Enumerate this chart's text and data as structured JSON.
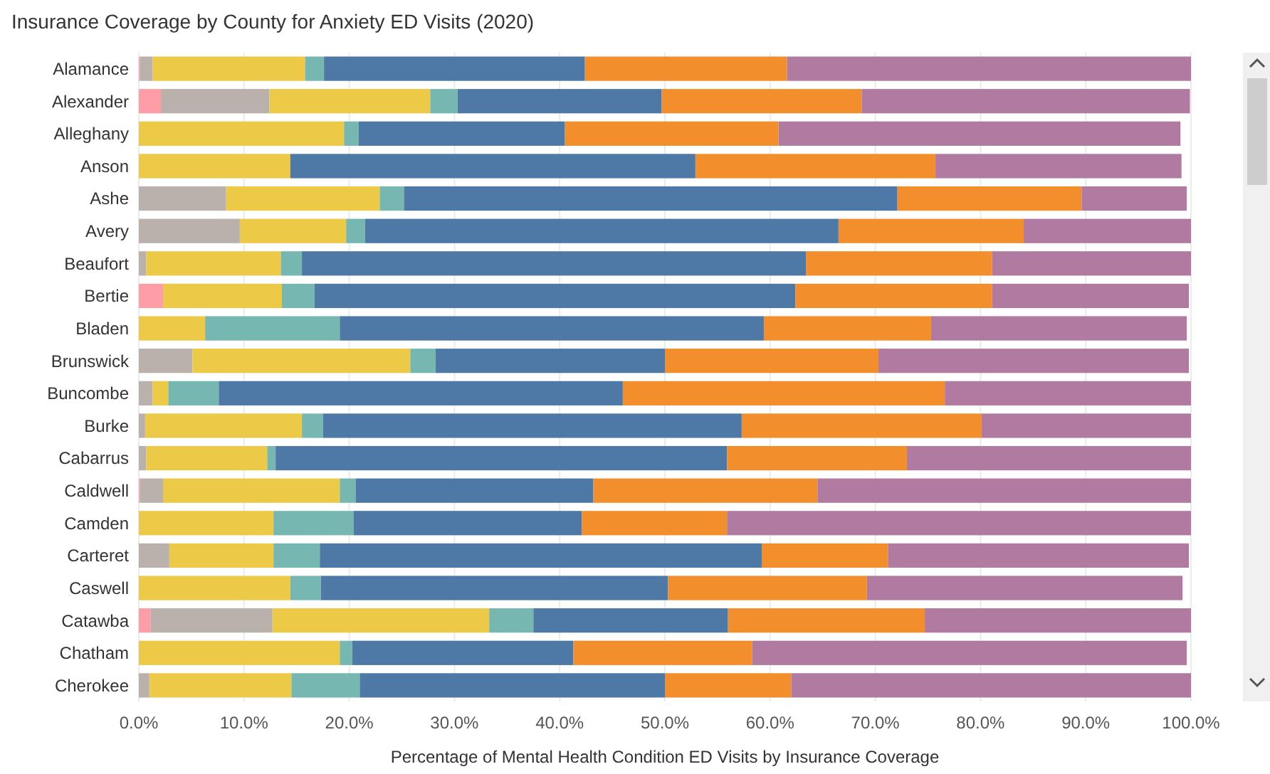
{
  "chart_data": {
    "type": "bar",
    "orientation": "horizontal",
    "stacked": true,
    "title": "Insurance Coverage by County for Anxiety ED Visits (2020)",
    "xlabel": "Percentage of Mental Health Condition ED Visits by Insurance Coverage",
    "categories": [
      "Alamance",
      "Alexander",
      "Alleghany",
      "Anson",
      "Ashe",
      "Avery",
      "Beaufort",
      "Bertie",
      "Bladen",
      "Brunswick",
      "Buncombe",
      "Burke",
      "Cabarrus",
      "Caldwell",
      "Camden",
      "Carteret",
      "Caswell",
      "Catawba",
      "Chatham",
      "Cherokee"
    ],
    "series": [
      {
        "color": "#ff9da7",
        "values": [
          0.1,
          2.1,
          0,
          0,
          0,
          0,
          0,
          2.3,
          0,
          0,
          0,
          0,
          0,
          0.1,
          0,
          0,
          0,
          1.1,
          0,
          0
        ]
      },
      {
        "color": "#bab0ac",
        "values": [
          1.2,
          10.3,
          0,
          0,
          8.3,
          9.6,
          0.7,
          0,
          0,
          5.1,
          1.3,
          0.6,
          0.7,
          2.2,
          0,
          2.9,
          0,
          11.6,
          0,
          1.0
        ]
      },
      {
        "color": "#edc948",
        "values": [
          14.5,
          15.3,
          19.5,
          14.4,
          14.6,
          10.1,
          12.8,
          11.3,
          6.3,
          20.7,
          1.5,
          14.9,
          11.5,
          16.8,
          12.8,
          9.9,
          14.4,
          20.6,
          19.1,
          13.5
        ]
      },
      {
        "color": "#76b7b2",
        "values": [
          1.8,
          2.6,
          1.4,
          0,
          2.3,
          1.8,
          2.0,
          3.1,
          12.8,
          2.4,
          4.8,
          2.0,
          0.8,
          1.5,
          7.6,
          4.4,
          2.9,
          4.2,
          1.2,
          6.5
        ]
      },
      {
        "color": "#4e79a7",
        "values": [
          24.8,
          19.4,
          19.6,
          38.5,
          46.9,
          45.0,
          47.9,
          45.7,
          40.3,
          21.8,
          38.4,
          39.8,
          42.9,
          22.6,
          21.7,
          42.0,
          33.0,
          18.5,
          21.0,
          29.0
        ]
      },
      {
        "color": "#f28e2b",
        "values": [
          19.2,
          19.0,
          20.3,
          22.8,
          17.5,
          17.6,
          17.7,
          18.7,
          15.9,
          20.3,
          30.6,
          22.8,
          17.1,
          21.3,
          13.8,
          12.0,
          18.9,
          18.7,
          17.0,
          12.0
        ]
      },
      {
        "color": "#b07aa1",
        "values": [
          38.4,
          31.2,
          38.2,
          23.4,
          10.0,
          15.9,
          18.9,
          18.7,
          24.3,
          29.5,
          23.4,
          19.9,
          27.0,
          35.5,
          44.1,
          28.6,
          30.0,
          25.3,
          41.3,
          38.0
        ]
      }
    ],
    "xlim": [
      0,
      100
    ],
    "xticks": [
      {
        "value": 0,
        "label": "0.0%"
      },
      {
        "value": 10,
        "label": "10.0%"
      },
      {
        "value": 20,
        "label": "20.0%"
      },
      {
        "value": 30,
        "label": "30.0%"
      },
      {
        "value": 40,
        "label": "40.0%"
      },
      {
        "value": 50,
        "label": "50.0%"
      },
      {
        "value": 60,
        "label": "60.0%"
      },
      {
        "value": 70,
        "label": "70.0%"
      },
      {
        "value": 80,
        "label": "80.0%"
      },
      {
        "value": 90,
        "label": "90.0%"
      },
      {
        "value": 100,
        "label": "100.0%"
      }
    ],
    "grid": "x"
  }
}
